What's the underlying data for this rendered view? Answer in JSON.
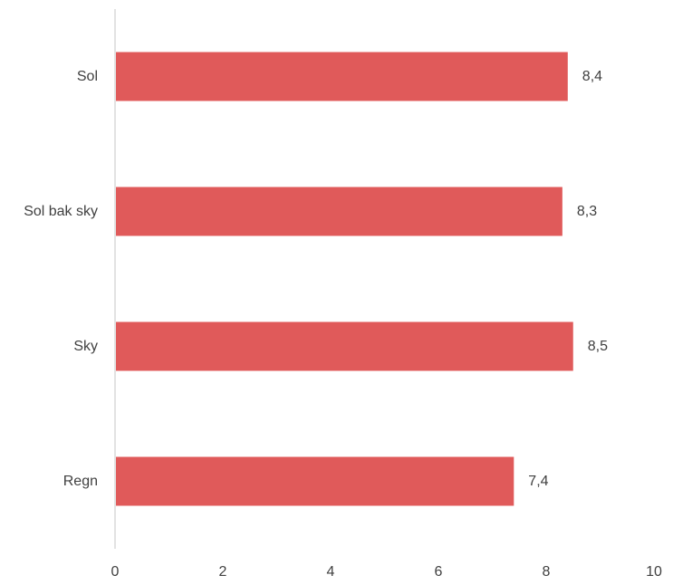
{
  "chart_data": {
    "type": "bar",
    "orientation": "horizontal",
    "title": "",
    "xlabel": "",
    "ylabel": "",
    "categories": [
      "Sol",
      "Sol bak sky",
      "Sky",
      "Regn"
    ],
    "values": [
      8.4,
      8.3,
      8.5,
      7.4
    ],
    "value_labels": [
      "8,4",
      "8,3",
      "8,5",
      "7,4"
    ],
    "xlim": [
      0,
      10
    ],
    "x_ticks": [
      0,
      2,
      4,
      6,
      8,
      10
    ],
    "x_tick_labels": [
      "0",
      "2",
      "4",
      "6",
      "8",
      "10"
    ],
    "grid": false,
    "legend": "none",
    "bar_color": "#e05a5a"
  }
}
